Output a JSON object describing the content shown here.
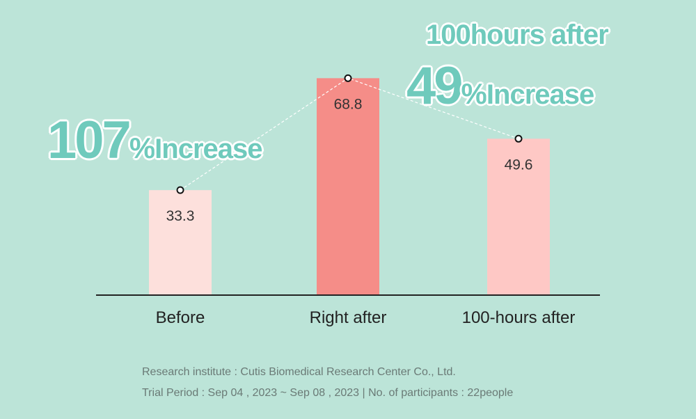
{
  "chart_data": {
    "type": "bar",
    "categories": [
      "Before",
      "Right after",
      "100-hours after"
    ],
    "values": [
      33.3,
      68.8,
      49.6
    ],
    "value_labels": [
      "33.3",
      "68.8",
      "49.6"
    ],
    "bar_colors": [
      "#fde0dc",
      "#f58d88",
      "#fec8c5"
    ],
    "trend_line": true,
    "grid": false
  },
  "callouts": {
    "left": {
      "number": "107",
      "percent": "%",
      "word": "Increase"
    },
    "right": {
      "title": "100hours after",
      "number": "49",
      "percent": "%",
      "word": "Increase"
    }
  },
  "footnotes": {
    "line1": "Research institute : Cutis Biomedical Research Center Co., Ltd.",
    "line2": "Trial Period : Sep 04 , 2023 ~ Sep 08 , 2023 | No. of participants : 22people"
  },
  "colors": {
    "background": "#bce4d8",
    "accent": "#6fcabc",
    "axis": "#222222"
  }
}
